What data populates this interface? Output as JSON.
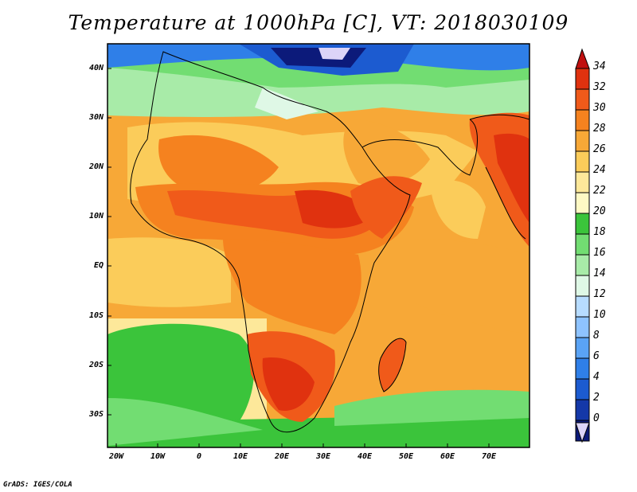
{
  "title": "Temperature at 1000hPa [C], VT: 2018030109",
  "credit": "GrADS: IGES/COLA",
  "lat_labels": [
    "40N",
    "30N",
    "20N",
    "10N",
    "EQ",
    "10S",
    "20S",
    "30S"
  ],
  "lon_labels": [
    "20W",
    "10W",
    "0",
    "10E",
    "20E",
    "30E",
    "40E",
    "50E",
    "60E",
    "70E"
  ],
  "colorbar": {
    "labels": [
      "34",
      "32",
      "30",
      "28",
      "26",
      "24",
      "22",
      "20",
      "18",
      "16",
      "14",
      "12",
      "10",
      "8",
      "6",
      "4",
      "2",
      "0"
    ],
    "colors": [
      "#e0320f",
      "#f05a1a",
      "#f5821f",
      "#f7a837",
      "#fbcc5a",
      "#fde89a",
      "#fef9c4",
      "#3bc43b",
      "#72dd72",
      "#a8eba8",
      "#dff8e6",
      "#b7dcff",
      "#8ec3ff",
      "#5aa3f5",
      "#2f7fe8",
      "#1c5bd0",
      "#1438a8",
      "#0c1a7a"
    ],
    "top_cap_color": "#c01010",
    "bottom_cap_color": "#dcd4f8"
  }
}
